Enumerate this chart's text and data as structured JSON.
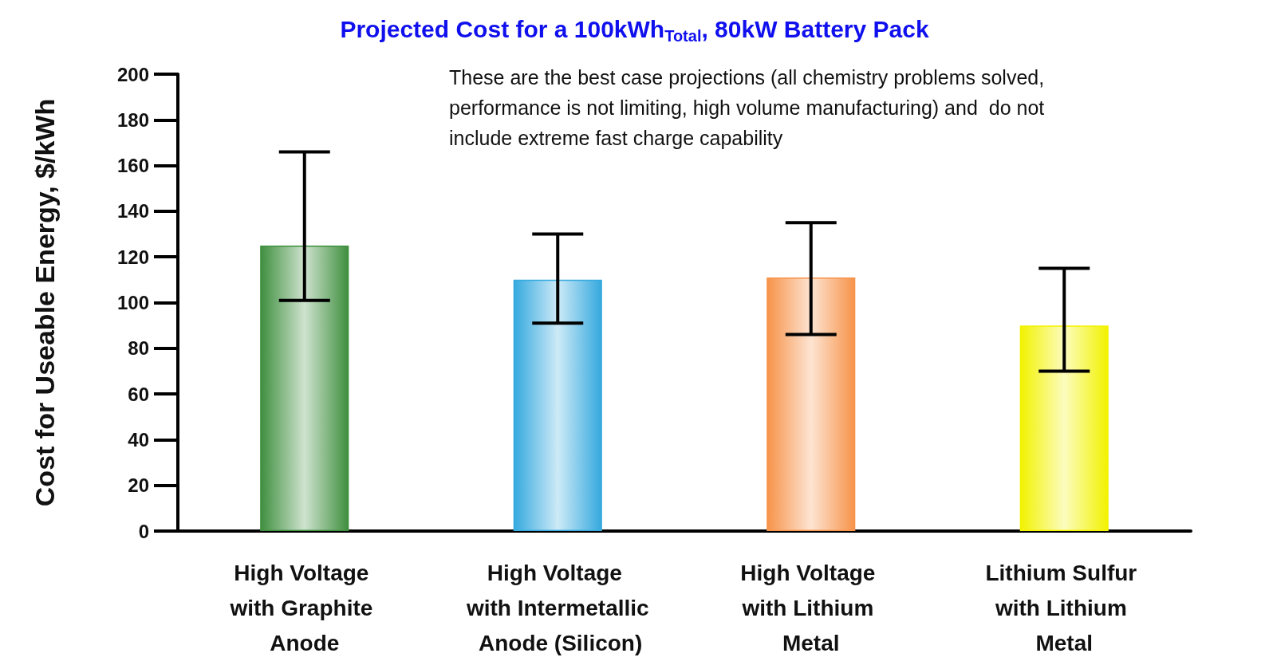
{
  "chart_data": {
    "type": "bar",
    "title": "Projected Cost for a 100kWh$_{Total}$, 80kW Battery Pack",
    "ylabel": "Cost for Useable Energy, $/kWh",
    "categories": [
      "High Voltage with Graphite Anode",
      "High Voltage with Intermetallic Anode (Silicon)",
      "High Voltage with Lithium Metal",
      "Lithium Sulfur with Lithium Metal"
    ],
    "values": [
      125,
      110,
      111,
      90
    ],
    "colors": [
      "#3f8f3f",
      "#35a9de",
      "#f7934a",
      "#f2f200"
    ],
    "errors": [
      [
        101,
        166
      ],
      [
        91,
        130
      ],
      [
        86,
        135
      ],
      [
        70,
        115
      ]
    ],
    "ylim": [
      0,
      200
    ],
    "yticks": [
      0,
      20,
      40,
      60,
      80,
      100,
      120,
      140,
      160,
      180,
      200
    ],
    "grid": false,
    "annotations": [
      "These are the best case projections (all chemistry problems solved, performance is not limiting, high volume manufacturing) and  do not include extreme fast charge capability"
    ]
  }
}
